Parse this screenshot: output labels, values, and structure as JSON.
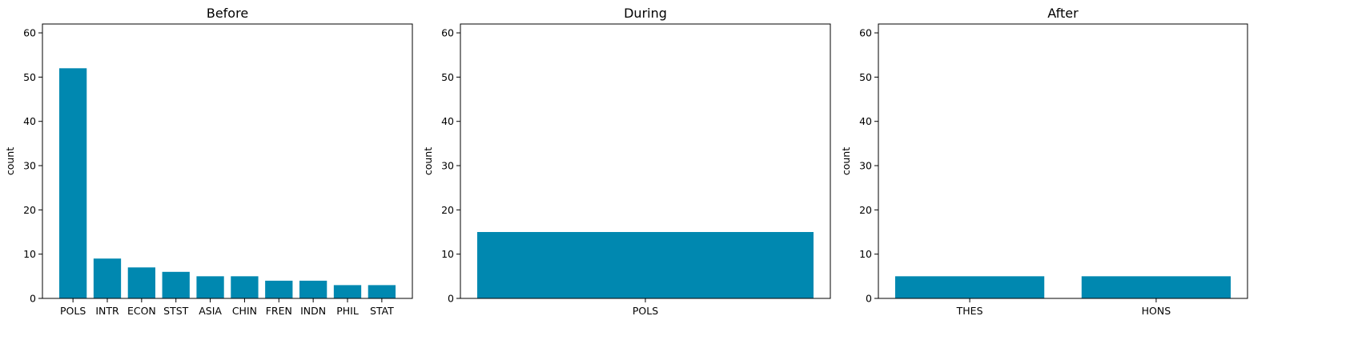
{
  "chart_data": [
    {
      "type": "bar",
      "title": "Before",
      "ylabel": "count",
      "xlabel": "",
      "categories": [
        "POLS",
        "INTR",
        "ECON",
        "STST",
        "ASIA",
        "CHIN",
        "FREN",
        "INDN",
        "PHIL",
        "STAT"
      ],
      "values": [
        52,
        9,
        7,
        6,
        5,
        5,
        4,
        4,
        3,
        3
      ],
      "ylim": [
        0,
        62
      ],
      "yticks": [
        0,
        10,
        20,
        30,
        40,
        50,
        60
      ],
      "color": "#0088b0",
      "grid": false
    },
    {
      "type": "bar",
      "title": "During",
      "ylabel": "count",
      "xlabel": "",
      "categories": [
        "POLS"
      ],
      "values": [
        15
      ],
      "ylim": [
        0,
        62
      ],
      "yticks": [
        0,
        10,
        20,
        30,
        40,
        50,
        60
      ],
      "color": "#0088b0",
      "grid": false
    },
    {
      "type": "bar",
      "title": "After",
      "ylabel": "count",
      "xlabel": "",
      "categories": [
        "THES",
        "HONS"
      ],
      "values": [
        5,
        5
      ],
      "ylim": [
        0,
        62
      ],
      "yticks": [
        0,
        10,
        20,
        30,
        40,
        50,
        60
      ],
      "color": "#0088b0",
      "grid": false
    }
  ]
}
